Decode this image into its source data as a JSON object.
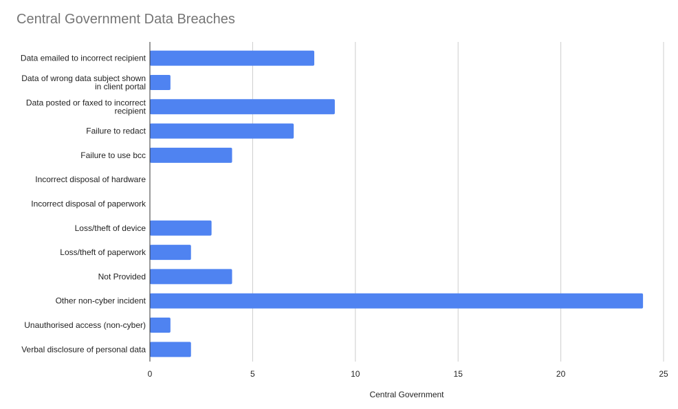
{
  "chart_data": {
    "type": "bar",
    "orientation": "horizontal",
    "title": "Central Government Data Breaches",
    "xlabel": "Central Government",
    "ylabel": "",
    "categories": [
      [
        "Data emailed to incorrect recipient"
      ],
      [
        "Data of wrong data subject shown",
        "in client portal"
      ],
      [
        "Data posted or faxed to incorrect",
        "recipient"
      ],
      [
        "Failure to redact"
      ],
      [
        "Failure to use bcc"
      ],
      [
        "Incorrect disposal of hardware"
      ],
      [
        "Incorrect disposal of paperwork"
      ],
      [
        "Loss/theft of device"
      ],
      [
        "Loss/theft of paperwork"
      ],
      [
        "Not Provided"
      ],
      [
        "Other non-cyber incident"
      ],
      [
        "Unauthorised access (non-cyber)"
      ],
      [
        "Verbal disclosure of personal data"
      ]
    ],
    "series": [
      {
        "values": [
          8,
          1,
          9,
          7,
          4,
          0,
          0,
          3,
          2,
          4,
          24,
          1,
          2
        ]
      }
    ],
    "xlim": [
      0,
      25
    ],
    "xticks": [
      0,
      5,
      10,
      15,
      20,
      25
    ],
    "grid": true,
    "legend": "none",
    "colors": {
      "bar": "#4f83f1",
      "grid": "#cccccc",
      "axis": "#333333",
      "text": "#222222",
      "title": "#757575"
    }
  }
}
